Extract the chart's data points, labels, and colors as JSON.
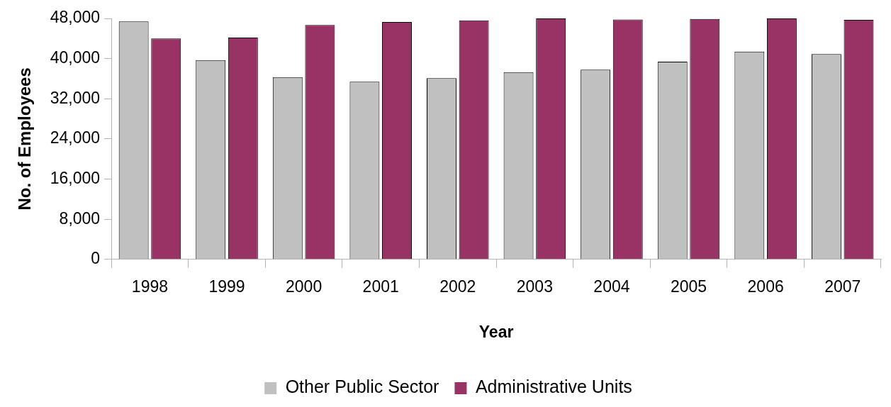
{
  "chart_data": {
    "type": "bar",
    "xlabel": "Year",
    "ylabel": "No. of Employees",
    "categories": [
      "1998",
      "1999",
      "2000",
      "2001",
      "2002",
      "2003",
      "2004",
      "2005",
      "2006",
      "2007"
    ],
    "series": [
      {
        "name": "Other Public Sector",
        "color": "#c0c0c0",
        "values": [
          47400,
          39700,
          36300,
          35400,
          36100,
          37300,
          37800,
          39400,
          41400,
          40900
        ]
      },
      {
        "name": "Administrative Units",
        "color": "#993366",
        "values": [
          44000,
          44200,
          46700,
          47300,
          47600,
          48000,
          47800,
          47900,
          48000,
          47700
        ]
      }
    ],
    "ylim": [
      0,
      48000
    ],
    "yticks": [
      {
        "value": 0,
        "label": "0"
      },
      {
        "value": 8000,
        "label": "8,000"
      },
      {
        "value": 16000,
        "label": "16,000"
      },
      {
        "value": 24000,
        "label": "24,000"
      },
      {
        "value": 32000,
        "label": "32,000"
      },
      {
        "value": 40000,
        "label": "40,000"
      },
      {
        "value": 48000,
        "label": "48,000"
      }
    ],
    "grid": false,
    "legend": "bottom"
  }
}
